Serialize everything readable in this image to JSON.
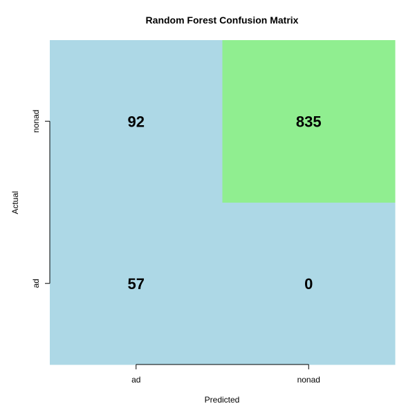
{
  "chart_data": {
    "type": "heatmap",
    "title": "Random Forest Confusion Matrix",
    "xlabel": "Predicted",
    "ylabel": "Actual",
    "x_categories": [
      "ad",
      "nonad"
    ],
    "y_categories": [
      "ad",
      "nonad"
    ],
    "cells": [
      {
        "actual": "ad",
        "predicted": "ad",
        "value": 57,
        "color": "#add8e6"
      },
      {
        "actual": "ad",
        "predicted": "nonad",
        "value": 0,
        "color": "#add8e6"
      },
      {
        "actual": "nonad",
        "predicted": "ad",
        "value": 92,
        "color": "#add8e6"
      },
      {
        "actual": "nonad",
        "predicted": "nonad",
        "value": 835,
        "color": "#90ee90"
      }
    ]
  }
}
